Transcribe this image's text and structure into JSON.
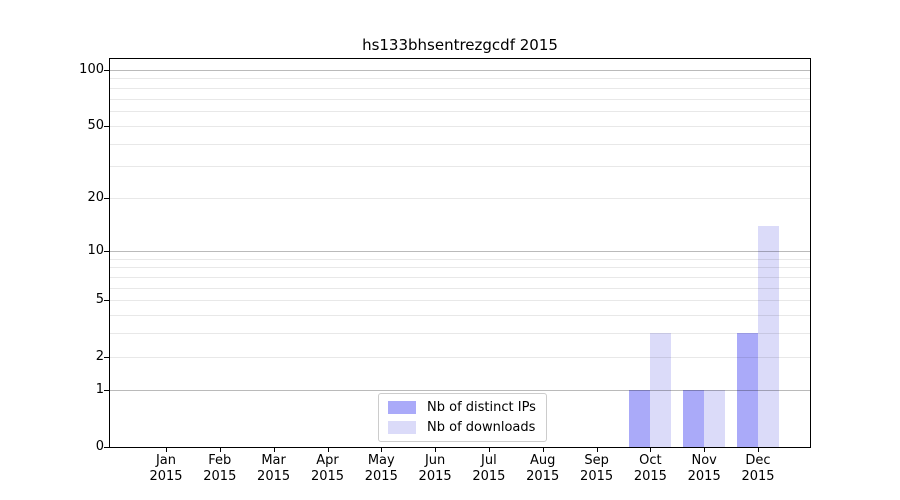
{
  "chart_data": {
    "type": "bar",
    "title": "hs133bhsentrezgcdf 2015",
    "categories": [
      "Jan",
      "Feb",
      "Mar",
      "Apr",
      "May",
      "Jun",
      "Jul",
      "Aug",
      "Sep",
      "Oct",
      "Nov",
      "Dec"
    ],
    "year_label": "2015",
    "series": [
      {
        "name": "Nb of distinct IPs",
        "color": "#aaaaf9",
        "values": [
          0,
          0,
          0,
          0,
          0,
          0,
          0,
          0,
          0,
          1,
          1,
          3
        ]
      },
      {
        "name": "Nb of downloads",
        "color": "#dbdbf9",
        "values": [
          0,
          0,
          0,
          0,
          0,
          0,
          0,
          0,
          0,
          3,
          1,
          14
        ]
      }
    ],
    "yticks": [
      0,
      1,
      2,
      5,
      10,
      20,
      50,
      100
    ],
    "ylim": [
      0,
      100
    ],
    "scale": "log10(1+x)",
    "grid": "horizontal-minor-and-major",
    "legend_position": "bottom-center"
  }
}
